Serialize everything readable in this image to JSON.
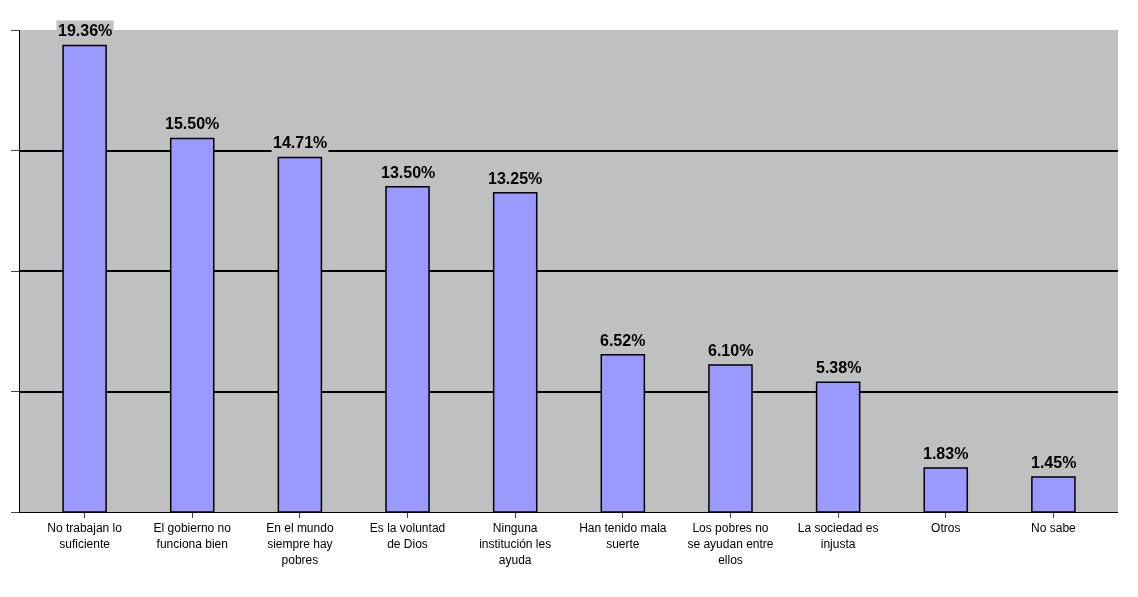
{
  "chart_data": {
    "type": "bar",
    "categories": [
      "No trabajan lo suficiente",
      "El gobierno no funciona bien",
      "En el mundo siempre hay pobres",
      "Es la voluntad de Dios",
      "Ninguna institución les ayuda",
      "Han tenido mala suerte",
      "Los pobres no se ayudan entre ellos",
      "La sociedad es injusta",
      "Otros",
      "No sabe"
    ],
    "values": [
      19.36,
      15.5,
      14.71,
      13.5,
      13.25,
      6.52,
      6.1,
      5.38,
      1.83,
      1.45
    ],
    "value_labels": [
      "19.36%",
      "15.50%",
      "14.71%",
      "13.50%",
      "13.25%",
      "6.52%",
      "6.10%",
      "5.38%",
      "1.83%",
      "1.45%"
    ],
    "color": "#9999ff",
    "ylim": [
      0,
      20
    ],
    "yticks": [
      {
        "value": 0,
        "label": null
      },
      {
        "value": 5,
        "label": null
      },
      {
        "value": 10,
        "label": null
      },
      {
        "value": 15,
        "label": null
      },
      {
        "value": 20,
        "label": null
      }
    ],
    "grid": "y",
    "tick_labels": "x"
  }
}
